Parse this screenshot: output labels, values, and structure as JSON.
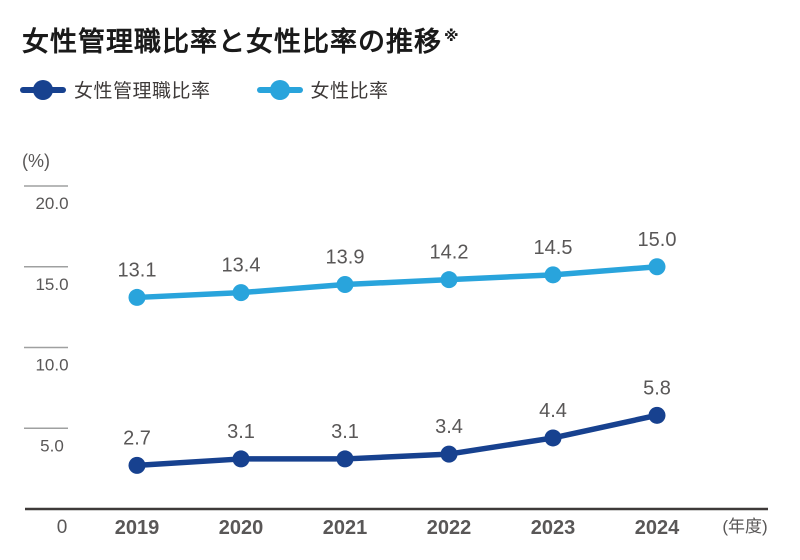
{
  "title": {
    "text": "女性管理職比率と女性比率の推移",
    "note": "※"
  },
  "legend": [
    {
      "label": "女性管理職比率",
      "color": "#17418F"
    },
    {
      "label": "女性比率",
      "color": "#29A4DC"
    }
  ],
  "colors": {
    "series_dark_blue": "#17418F",
    "series_light_blue": "#29A4DC",
    "label_gray": "#595757",
    "axis_line": "#3E3A39",
    "tick_line": "#9FA0A0",
    "title_black": "#1A1A1A"
  },
  "chart_data": {
    "type": "line",
    "title": "女性管理職比率と女性比率の推移",
    "categories": [
      "2019",
      "2020",
      "2021",
      "2022",
      "2023",
      "2024"
    ],
    "series": [
      {
        "name": "女性管理職比率",
        "color": "#17418F",
        "values": [
          2.7,
          3.1,
          3.1,
          3.4,
          4.4,
          5.8
        ]
      },
      {
        "name": "女性比率",
        "color": "#29A4DC",
        "values": [
          13.1,
          13.4,
          13.9,
          14.2,
          14.5,
          15.0
        ]
      }
    ],
    "ylabel": "(%)",
    "xlabel": "(年度)",
    "zero_label": "0",
    "ylim": [
      0,
      20
    ],
    "y_ticks": [
      {
        "value": 20,
        "label": "20.0"
      },
      {
        "value": 15,
        "label": "15.0"
      },
      {
        "value": 10,
        "label": "10.0"
      },
      {
        "value": 5,
        "label": "5.0"
      }
    ],
    "grid": false,
    "data_labels": true,
    "legend_position": "top-left"
  }
}
